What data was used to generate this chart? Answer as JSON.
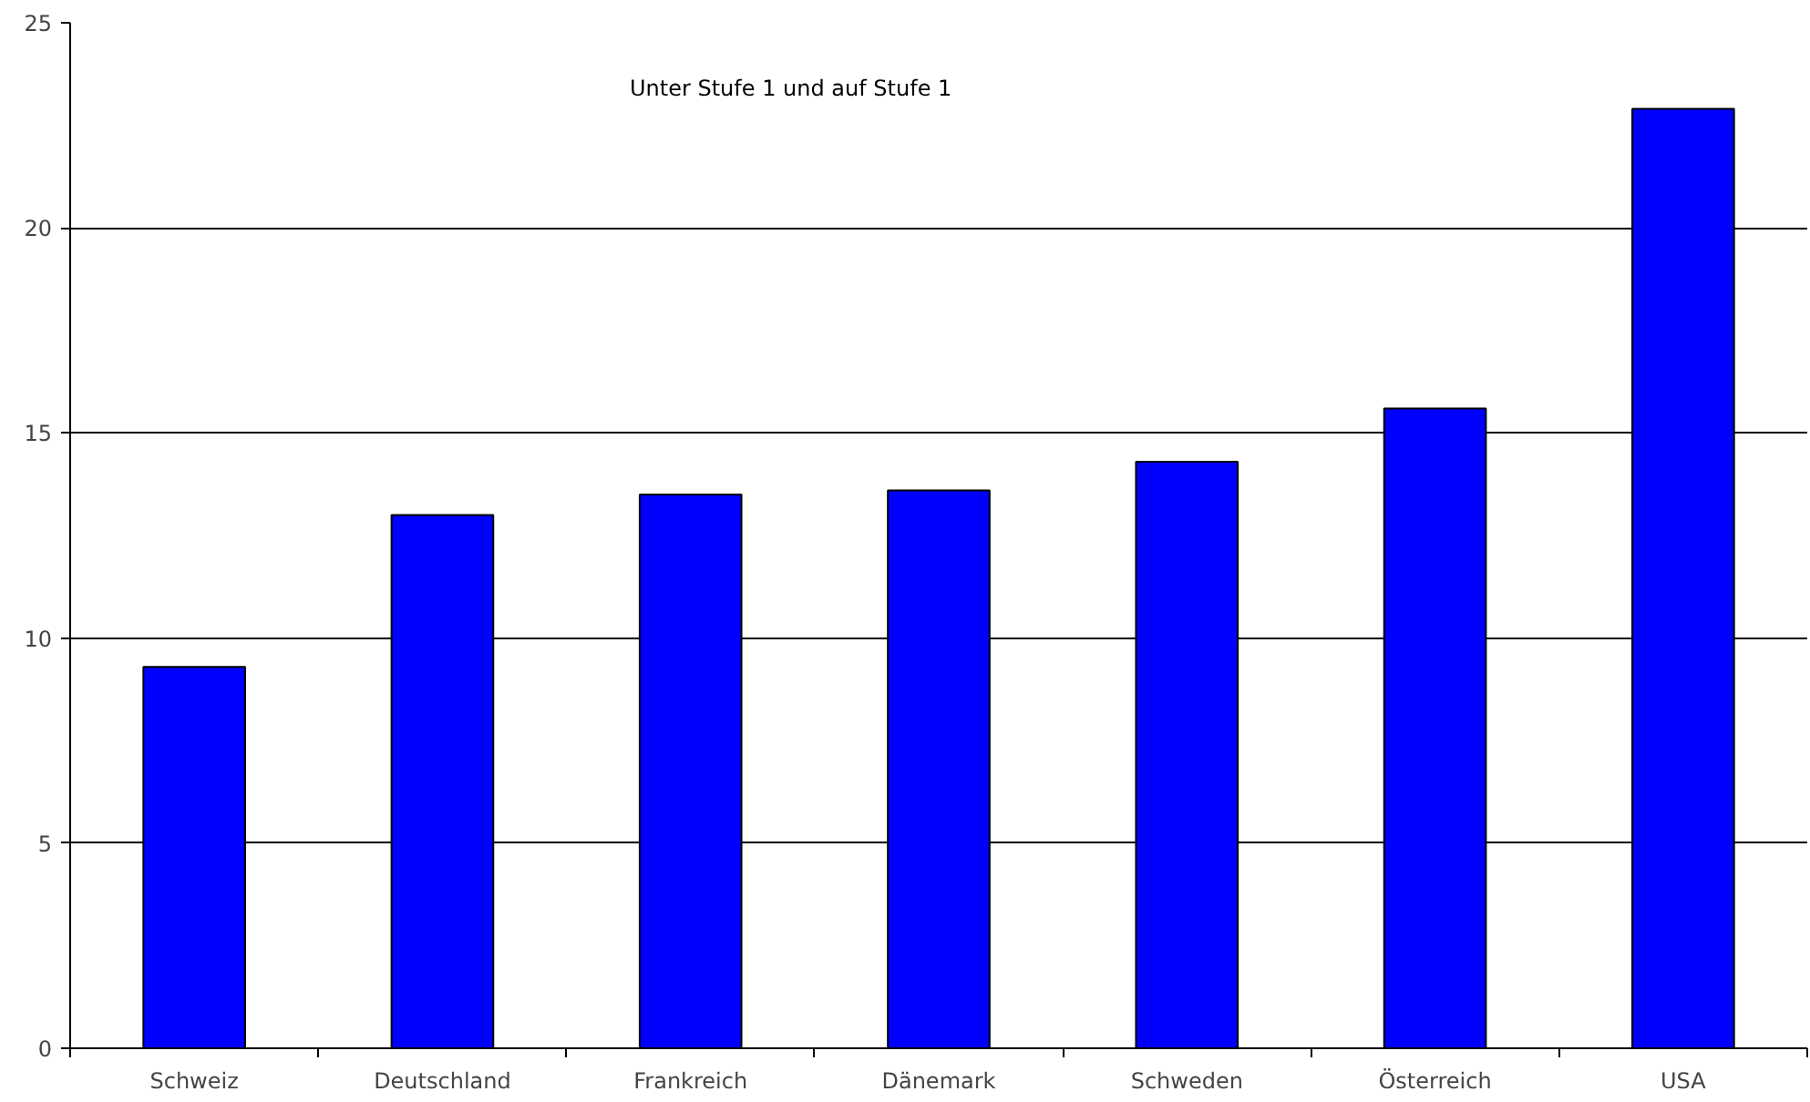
{
  "chart_data": {
    "type": "bar",
    "categories": [
      "Schweiz",
      "Deutschland",
      "Frankreich",
      "Dänemark",
      "Schweden",
      "Österreich",
      "USA"
    ],
    "values": [
      9.3,
      13.0,
      13.5,
      13.6,
      14.3,
      15.6,
      22.9
    ],
    "color": "#0000ff",
    "ylim": [
      0,
      25
    ],
    "yticks": [
      0,
      5,
      10,
      15,
      20,
      25
    ],
    "grid": "y",
    "annotations": [
      "Unter Stufe 1 und auf Stufe 1"
    ]
  }
}
